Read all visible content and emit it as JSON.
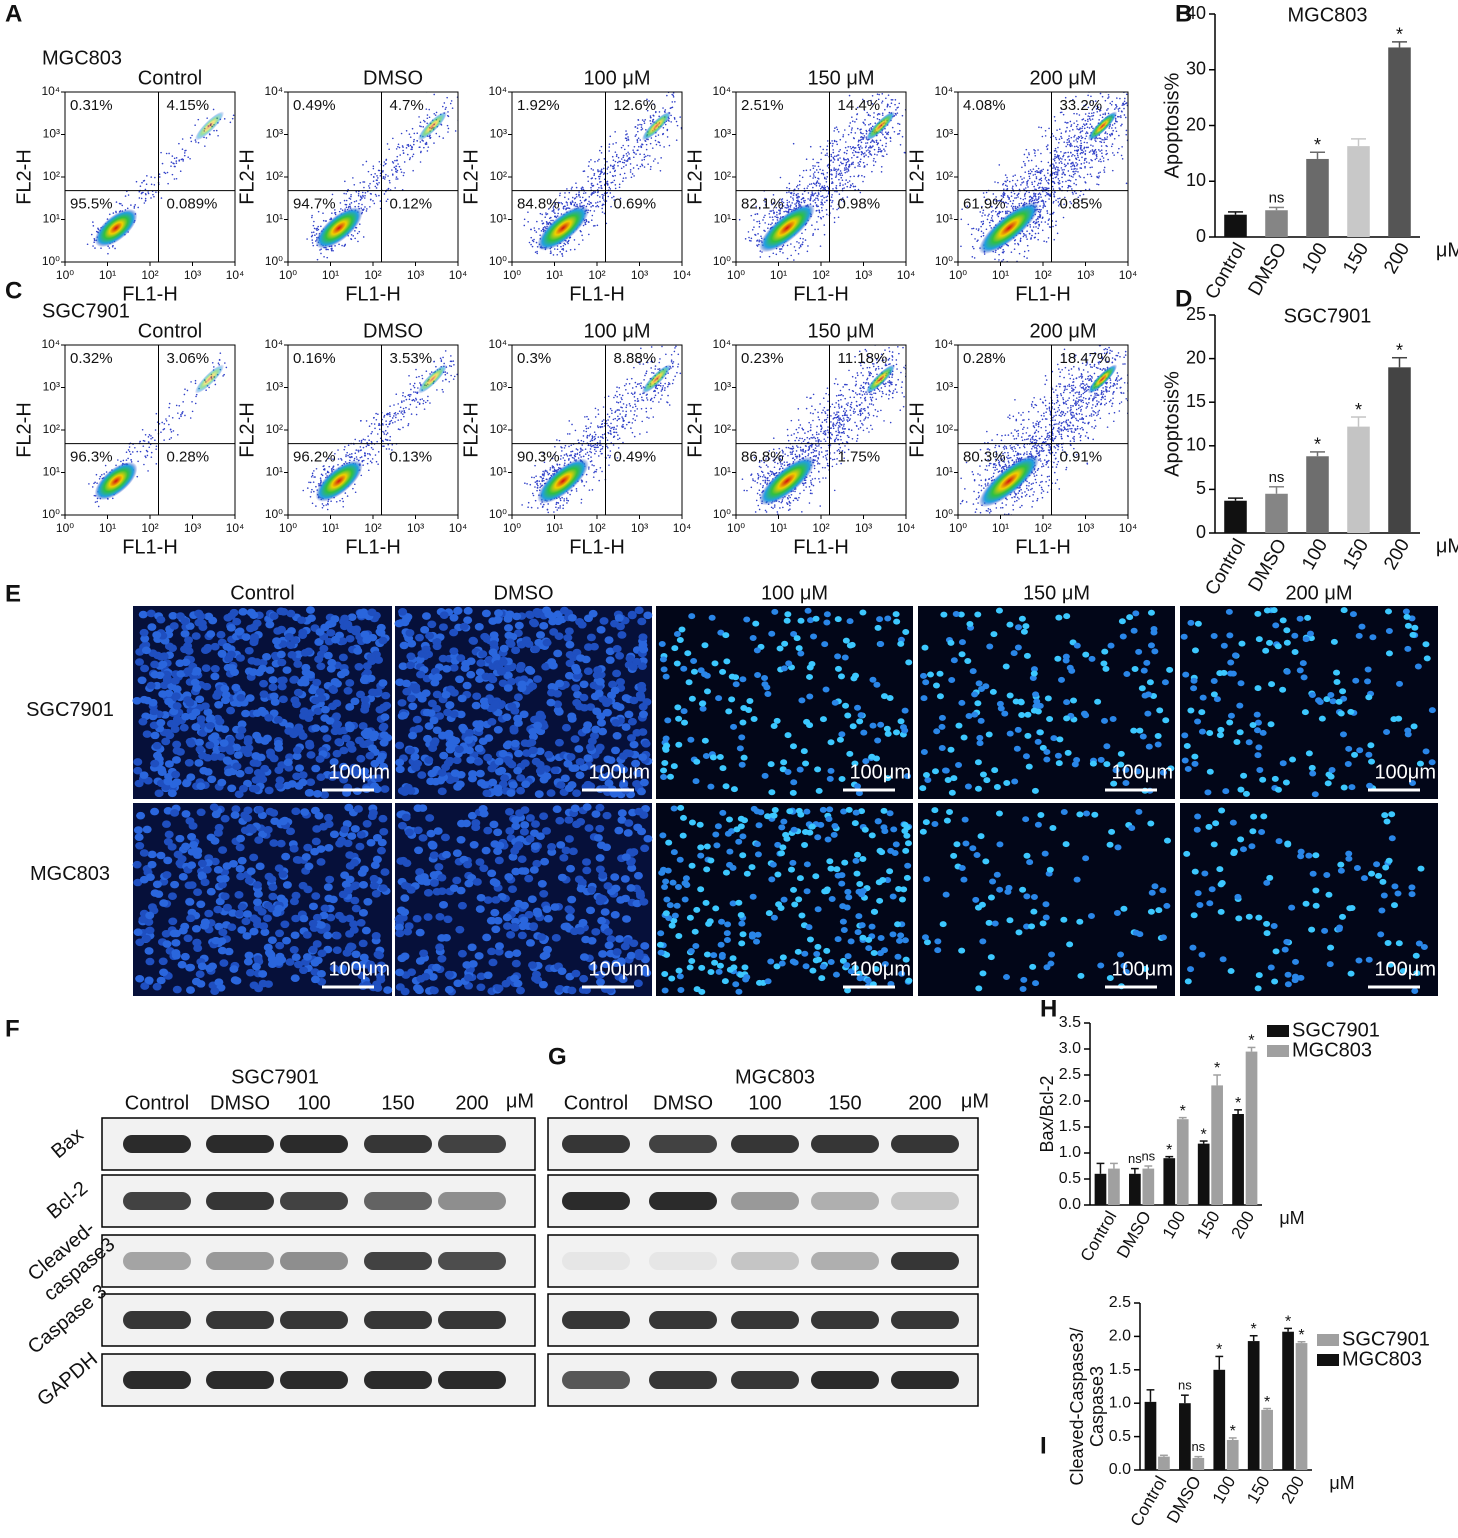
{
  "panel_labels": [
    "A",
    "B",
    "C",
    "D",
    "E",
    "F",
    "G",
    "H",
    "I"
  ],
  "flow_cytometry": {
    "x_label": "FL1-H",
    "y_label": "FL2-H",
    "ticks": [
      "10⁰",
      "10¹",
      "10²",
      "10³",
      "10⁴"
    ],
    "groups": [
      {
        "cell_line": "MGC803",
        "plots": [
          {
            "title": "Control",
            "quadrants": [
              "0.31%",
              "4.15%",
              "95.5%",
              "0.089%"
            ]
          },
          {
            "title": "DMSO",
            "quadrants": [
              "0.49%",
              "4.7%",
              "94.7%",
              "0.12%"
            ]
          },
          {
            "title": "100 μM",
            "quadrants": [
              "1.92%",
              "12.6%",
              "84.8%",
              "0.69%"
            ]
          },
          {
            "title": "150 μM",
            "quadrants": [
              "2.51%",
              "14.4%",
              "82.1%",
              "0.98%"
            ]
          },
          {
            "title": "200 μM",
            "quadrants": [
              "4.08%",
              "33.2%",
              "61.9%",
              "0.85%"
            ]
          }
        ]
      },
      {
        "cell_line": "SGC7901",
        "plots": [
          {
            "title": "Control",
            "quadrants": [
              "0.32%",
              "3.06%",
              "96.3%",
              "0.28%"
            ]
          },
          {
            "title": "DMSO",
            "quadrants": [
              "0.16%",
              "3.53%",
              "96.2%",
              "0.13%"
            ]
          },
          {
            "title": "100 μM",
            "quadrants": [
              "0.3%",
              "8.88%",
              "90.3%",
              "0.49%"
            ]
          },
          {
            "title": "150 μM",
            "quadrants": [
              "0.23%",
              "11.18%",
              "86.8%",
              "1.75%"
            ]
          },
          {
            "title": "200 μM",
            "quadrants": [
              "0.28%",
              "18.47%",
              "80.3%",
              "0.91%"
            ]
          }
        ]
      }
    ]
  },
  "microscopy": {
    "columns": [
      "Control",
      "DMSO",
      "100 μM",
      "150 μM",
      "200 μM"
    ],
    "rows": [
      "SGC7901",
      "MGC803"
    ],
    "scale_bar": "100μm"
  },
  "western_blot": {
    "proteins": [
      [
        "Bax"
      ],
      [
        "Bcl-2"
      ],
      [
        "Cleaved-",
        "caspase3"
      ],
      [
        "Caspase 3"
      ],
      [
        "GAPDH"
      ]
    ],
    "blots": [
      {
        "cell_line": "SGC7901",
        "lanes": [
          "Control",
          "DMSO",
          "100",
          "150",
          "200"
        ],
        "unit": "μM"
      },
      {
        "cell_line": "MGC803",
        "lanes": [
          "Control",
          "DMSO",
          "100",
          "150",
          "200"
        ],
        "unit": "μM"
      }
    ]
  },
  "chart_data": [
    {
      "type": "bar",
      "title": "MGC803",
      "y_label": "Apoptosis%",
      "unit": "μM",
      "categories": [
        "Control",
        "DMSO",
        "100",
        "150",
        "200"
      ],
      "values": [
        4,
        4.8,
        14,
        16.3,
        34
      ],
      "errors": [
        0.5,
        0.5,
        1.2,
        1.3,
        1
      ],
      "colors": [
        "#111111",
        "#858585",
        "#6a6a6a",
        "#c8c8c8",
        "#555555"
      ],
      "annotations": [
        null,
        "ns",
        "*",
        null,
        "*"
      ],
      "ylim": [
        0,
        40
      ],
      "yticks": [
        0,
        10,
        20,
        30,
        40
      ]
    },
    {
      "type": "bar",
      "title": "SGC7901",
      "y_label": "Apoptosis%",
      "unit": "μM",
      "categories": [
        "Control",
        "DMSO",
        "100",
        "150",
        "200"
      ],
      "values": [
        3.7,
        4.5,
        8.8,
        12.2,
        19
      ],
      "errors": [
        0.3,
        0.8,
        0.5,
        1.1,
        1.1
      ],
      "colors": [
        "#111111",
        "#858585",
        "#6e6e6e",
        "#c4c4c4",
        "#444444"
      ],
      "annotations": [
        null,
        "ns",
        "*",
        "*",
        "*"
      ],
      "ylim": [
        0,
        25
      ],
      "yticks": [
        0,
        5,
        10,
        15,
        20,
        25
      ]
    },
    {
      "type": "grouped_bar",
      "y_label": [
        "Bax/Bcl-2"
      ],
      "unit": "μM",
      "legend": "upper right",
      "categories": [
        "Control",
        "DMSO",
        "100",
        "150",
        "200"
      ],
      "series": [
        {
          "name": "SGC7901",
          "color": "#111111",
          "values": [
            0.6,
            0.6,
            0.9,
            1.18,
            1.75
          ],
          "errors": [
            0.2,
            0.1,
            0.03,
            0.05,
            0.08
          ],
          "annotations": [
            null,
            "ns",
            "*",
            "*",
            "*"
          ]
        },
        {
          "name": "MGC803",
          "color": "#a0a0a0",
          "values": [
            0.7,
            0.7,
            1.65,
            2.3,
            2.95
          ],
          "errors": [
            0.1,
            0.05,
            0.03,
            0.2,
            0.08
          ],
          "annotations": [
            null,
            "ns",
            "*",
            "*",
            "*"
          ]
        }
      ],
      "ylim": [
        0,
        3.5
      ],
      "yticks": [
        {
          "value": 0,
          "label": "0.0"
        },
        0.5,
        {
          "value": 1,
          "label": "1.0"
        },
        1.5,
        {
          "value": 2,
          "label": "2.0"
        },
        2.5,
        {
          "value": 3,
          "label": "3.0"
        },
        3.5
      ]
    },
    {
      "type": "grouped_bar",
      "y_label": [
        "Cleaved-Caspase3/",
        "Caspase3"
      ],
      "unit": "μM",
      "legend": "upper right",
      "categories": [
        "Control",
        "DMSO",
        "100",
        "150",
        "200"
      ],
      "series": [
        {
          "name": "SGC7901",
          "color": "#a0a0a0",
          "values": [
            0.2,
            0.18,
            0.45,
            0.9,
            1.9
          ],
          "errors": [
            0.02,
            0.02,
            0.03,
            0.02,
            0.02
          ],
          "annotations": [
            null,
            "ns",
            "*",
            "*",
            "*"
          ]
        },
        {
          "name": "MGC803",
          "color": "#111111",
          "values": [
            1.02,
            1,
            1.5,
            1.93,
            2.07
          ],
          "errors": [
            0.18,
            0.12,
            0.2,
            0.08,
            0.05
          ],
          "annotations": [
            null,
            "ns",
            "*",
            "*",
            "*"
          ]
        }
      ],
      "ylim": [
        0,
        2.5
      ],
      "yticks": [
        {
          "value": 0,
          "label": "0.0"
        },
        0.5,
        {
          "value": 1,
          "label": "1.0"
        },
        1.5,
        {
          "value": 2,
          "label": "2.0"
        },
        2.5
      ]
    }
  ]
}
